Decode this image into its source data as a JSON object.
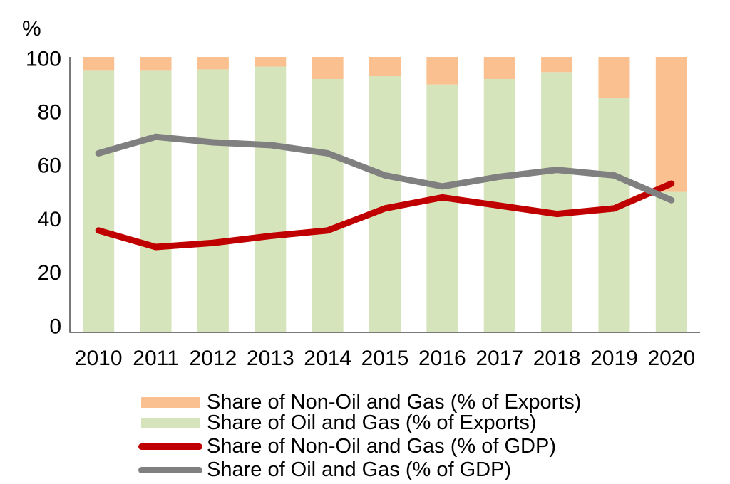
{
  "figure": {
    "background": "#ffffff",
    "axis_color": "#4d4d4d",
    "text_color": "#000000"
  },
  "chart_data": {
    "type": "bar",
    "stacked": true,
    "title": "",
    "xlabel": "",
    "ylabel": "%",
    "ylim": [
      0,
      100
    ],
    "yticks": [
      0,
      20,
      40,
      60,
      80,
      100
    ],
    "grid": false,
    "legend_position": "bottom",
    "categories": [
      "2010",
      "2011",
      "2012",
      "2013",
      "2014",
      "2015",
      "2016",
      "2017",
      "2018",
      "2019",
      "2020"
    ],
    "series": [
      {
        "name": "Share of Non-Oil and Gas (% of Exports)",
        "type": "bar",
        "color": "#FAC090",
        "values": [
          5,
          5,
          4.5,
          3.5,
          8,
          7,
          10,
          8,
          5.5,
          15,
          49
        ]
      },
      {
        "name": "Share of Oil and Gas (% of Exports)",
        "type": "bar",
        "color": "#D6E4BC",
        "values": [
          95,
          95,
          95.5,
          96.5,
          92,
          93,
          90,
          92,
          94.5,
          85,
          51
        ]
      },
      {
        "name": "Share of Non-Oil and Gas (% of GDP)",
        "type": "line",
        "color": "#C00000",
        "values": [
          37,
          31,
          32.5,
          35,
          37,
          45,
          49,
          46,
          43,
          45,
          54
        ]
      },
      {
        "name": "Share of Oil and Gas (% of GDP)",
        "type": "line",
        "color": "#808080",
        "values": [
          65,
          71,
          69,
          68,
          65,
          57,
          53,
          56.5,
          59,
          57,
          48
        ]
      }
    ]
  }
}
